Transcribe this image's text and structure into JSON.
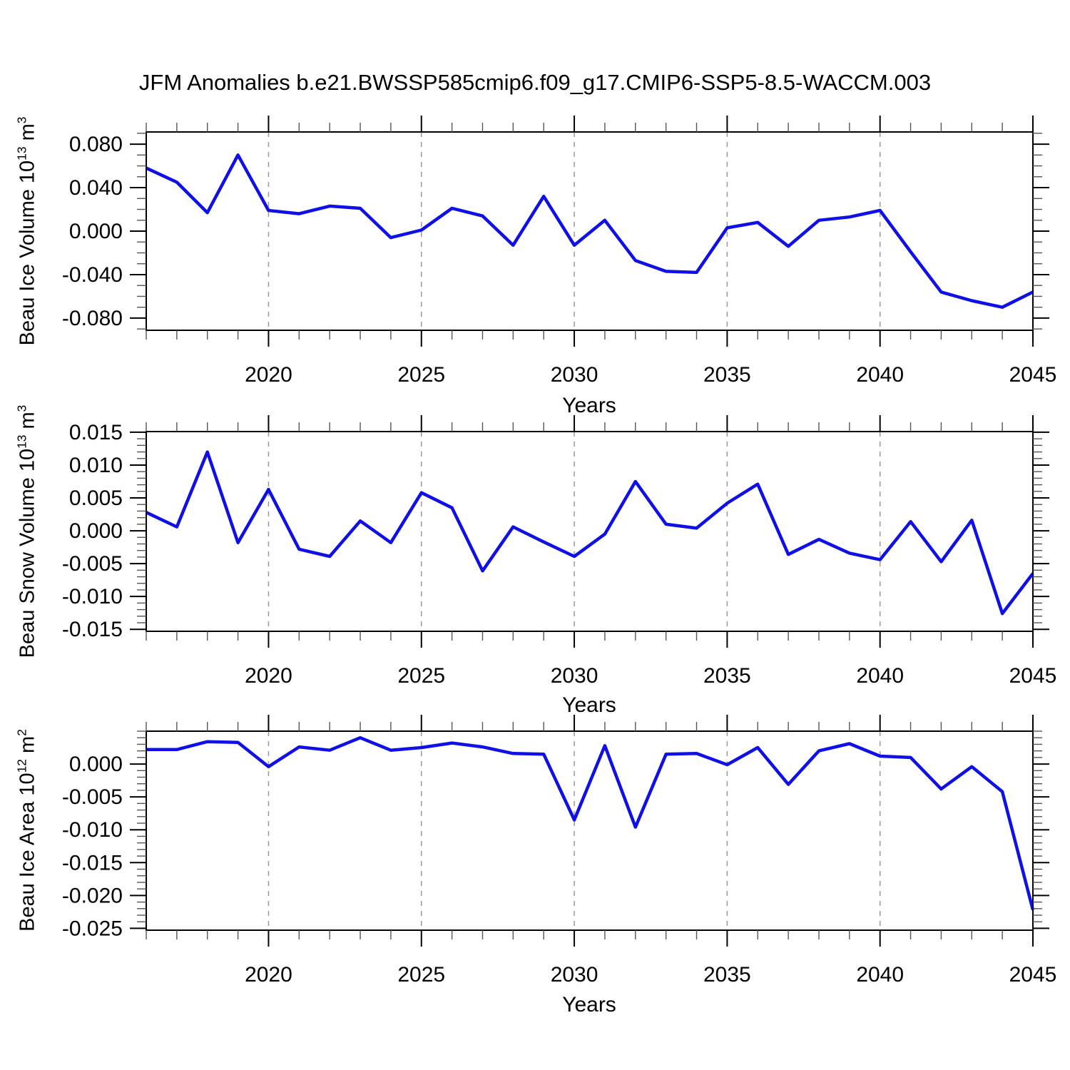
{
  "title": "JFM Anomalies b.e21.BWSSP585cmip6.f09_g17.CMIP6-SSP5-8.5-WACCM.003",
  "line_color": "#0f0fe8",
  "grid_color": "#9a9a9a",
  "chart_data": [
    {
      "type": "line",
      "name": "beau-ice-volume",
      "ylabel_parts": {
        "base": "Beau Ice Volume 10",
        "sup1": "13",
        "mid": " m",
        "sup2": "3"
      },
      "xlabel": "Years",
      "x": [
        2016,
        2017,
        2018,
        2019,
        2020,
        2021,
        2022,
        2023,
        2024,
        2025,
        2026,
        2027,
        2028,
        2029,
        2030,
        2031,
        2032,
        2033,
        2034,
        2035,
        2036,
        2037,
        2038,
        2039,
        2040,
        2041,
        2042,
        2043,
        2044,
        2045
      ],
      "values": [
        0.058,
        0.045,
        0.017,
        0.07,
        0.019,
        0.016,
        0.023,
        0.021,
        -0.006,
        0.001,
        0.021,
        0.014,
        -0.013,
        0.032,
        -0.013,
        0.01,
        -0.027,
        -0.037,
        -0.038,
        0.003,
        0.008,
        -0.014,
        0.01,
        0.013,
        0.019,
        -0.019,
        -0.056,
        -0.064,
        -0.07,
        -0.056
      ],
      "xlim": [
        2016,
        2045
      ],
      "ylim": [
        -0.0912,
        0.0912
      ],
      "ytick_major": [
        0.08,
        0.04,
        0.0,
        -0.04,
        -0.08
      ],
      "ytick_labels": [
        "0.080",
        "0.040",
        "0.000",
        "-0.040",
        "-0.080"
      ],
      "y_minor_step": 0.01,
      "xtick_major": [
        2020,
        2025,
        2030,
        2035,
        2040,
        2045
      ],
      "xtick_labels": [
        "2020",
        "2025",
        "2030",
        "2035",
        "2040",
        "2045"
      ],
      "x_minor_step": 1,
      "gridlines_x": [
        2020,
        2025,
        2030,
        2035,
        2040
      ],
      "grid": "vertical-dashed",
      "legend": "none"
    },
    {
      "type": "line",
      "name": "beau-snow-volume",
      "ylabel_parts": {
        "base": "Beau Snow Volume 10",
        "sup1": "13",
        "mid": " m",
        "sup2": "3"
      },
      "xlabel": "Years",
      "x": [
        2016,
        2017,
        2018,
        2019,
        2020,
        2021,
        2022,
        2023,
        2024,
        2025,
        2026,
        2027,
        2028,
        2029,
        2030,
        2031,
        2032,
        2033,
        2034,
        2035,
        2036,
        2037,
        2038,
        2039,
        2040,
        2041,
        2042,
        2043,
        2044,
        2045
      ],
      "values": [
        0.0028,
        0.0006,
        0.012,
        -0.0018,
        0.0063,
        -0.0028,
        -0.0039,
        0.0015,
        -0.0018,
        0.0058,
        0.0035,
        -0.0061,
        0.0006,
        -0.0017,
        -0.0039,
        -0.0005,
        0.0075,
        0.001,
        0.0004,
        0.0042,
        0.0071,
        -0.0036,
        -0.0013,
        -0.0034,
        -0.0044,
        0.0014,
        -0.0047,
        0.0016,
        -0.0126,
        -0.0065
      ],
      "xlim": [
        2016,
        2045
      ],
      "ylim": [
        -0.0153,
        0.0151
      ],
      "ytick_major": [
        0.015,
        0.01,
        0.005,
        0.0,
        -0.005,
        -0.01,
        -0.015
      ],
      "ytick_labels": [
        "0.015",
        "0.010",
        "0.005",
        "0.000",
        "-0.005",
        "-0.010",
        "-0.015"
      ],
      "y_minor_step": 0.001,
      "xtick_major": [
        2020,
        2025,
        2030,
        2035,
        2040,
        2045
      ],
      "xtick_labels": [
        "2020",
        "2025",
        "2030",
        "2035",
        "2040",
        "2045"
      ],
      "x_minor_step": 1,
      "gridlines_x": [
        2020,
        2025,
        2030,
        2035,
        2040
      ],
      "grid": "vertical-dashed",
      "legend": "none"
    },
    {
      "type": "line",
      "name": "beau-ice-area",
      "ylabel_parts": {
        "base": "Beau Ice Area 10",
        "sup1": "12",
        "mid": " m",
        "sup2": "2"
      },
      "xlabel": "Years",
      "x": [
        2016,
        2017,
        2018,
        2019,
        2020,
        2021,
        2022,
        2023,
        2024,
        2025,
        2026,
        2027,
        2028,
        2029,
        2030,
        2031,
        2032,
        2033,
        2034,
        2035,
        2036,
        2037,
        2038,
        2039,
        2040,
        2041,
        2042,
        2043,
        2044,
        2045
      ],
      "values": [
        0.0022,
        0.0022,
        0.0034,
        0.0033,
        -0.0004,
        0.0026,
        0.0021,
        0.004,
        0.0021,
        0.0025,
        0.0032,
        0.0026,
        0.0016,
        0.0015,
        -0.0085,
        0.0028,
        -0.0096,
        0.0015,
        0.0016,
        -0.0001,
        0.0025,
        -0.0031,
        0.002,
        0.0031,
        0.0012,
        0.001,
        -0.0038,
        -0.0004,
        -0.0042,
        -0.0222
      ],
      "xlim": [
        2016,
        2045
      ],
      "ylim": [
        -0.02528,
        0.005
      ],
      "ytick_major": [
        0.0,
        -0.005,
        -0.01,
        -0.015,
        -0.02,
        -0.025
      ],
      "ytick_labels": [
        "0.000",
        "-0.005",
        "-0.010",
        "-0.015",
        "-0.020",
        "-0.025"
      ],
      "y_minor_step": 0.001,
      "xtick_major": [
        2020,
        2025,
        2030,
        2035,
        2040,
        2045
      ],
      "xtick_labels": [
        "2020",
        "2025",
        "2030",
        "2035",
        "2040",
        "2045"
      ],
      "x_minor_step": 1,
      "gridlines_x": [
        2020,
        2025,
        2030,
        2035,
        2040
      ],
      "grid": "vertical-dashed",
      "legend": "none"
    }
  ]
}
